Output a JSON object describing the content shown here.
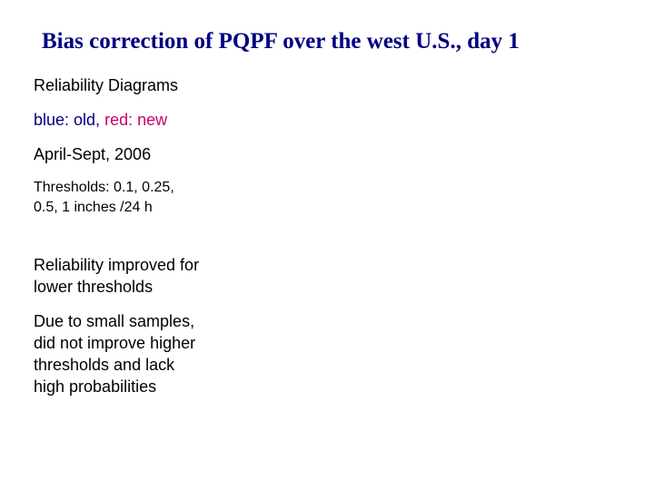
{
  "slide": {
    "title": "Bias correction of PQPF over the west U.S., day 1",
    "items": {
      "reliability_diagrams": "Reliability Diagrams",
      "legend": {
        "blue_text": "blue: old,",
        "red_text": "red: new",
        "blue_color": "#000080",
        "red_color": "#cc0066"
      },
      "period": "April-Sept, 2006",
      "thresholds": [
        "Thresholds: 0.1, 0.25,",
        "0.5, 1 inches /24 h"
      ],
      "improvement": [
        "Reliability improved for",
        "lower thresholds"
      ],
      "limitation": [
        "Due to small samples,",
        "did not improve higher",
        "thresholds and lack",
        "high probabilities"
      ]
    }
  }
}
